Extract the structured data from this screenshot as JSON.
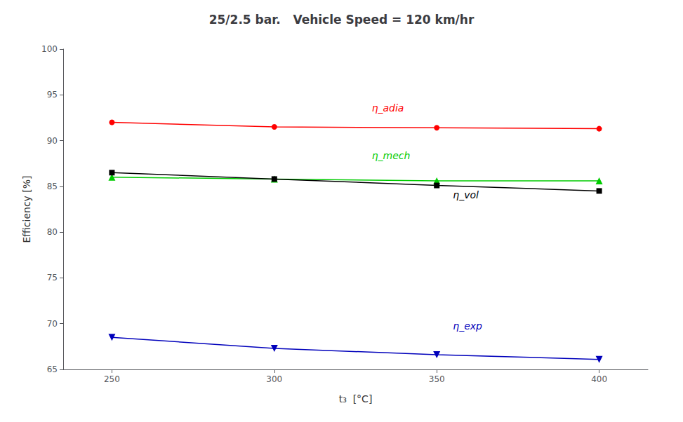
{
  "chart_data": {
    "type": "line",
    "title": "25/2.5 bar.   Vehicle Speed = 120 km/hr",
    "xlabel": "t₃  [°C]",
    "ylabel": "Efficiency [%]",
    "x": [
      250,
      300,
      350,
      400
    ],
    "series": [
      {
        "color": "#ff0000",
        "marker": "circle",
        "values": [
          92.0,
          91.5,
          91.4,
          91.3
        ]
      },
      {
        "color": "#00cc00",
        "marker": "triangle",
        "values": [
          86.0,
          85.8,
          85.6,
          85.6
        ]
      },
      {
        "color": "#000000",
        "marker": "square",
        "values": [
          86.5,
          85.8,
          85.1,
          84.5
        ]
      },
      {
        "color": "#0000bb",
        "marker": "triangle-down",
        "values": [
          68.5,
          67.3,
          66.6,
          66.1
        ]
      }
    ],
    "annotations": [
      {
        "text": "η_adia",
        "x": 330,
        "y": 93.0,
        "color": "#ff0000"
      },
      {
        "text": "η_mech",
        "x": 330,
        "y": 87.8,
        "color": "#00cc00"
      },
      {
        "text": "η_vol",
        "x": 355,
        "y": 83.5,
        "color": "#000000"
      },
      {
        "text": "η_exp",
        "x": 355,
        "y": 69.2,
        "color": "#0000bb"
      }
    ],
    "xlim": [
      235,
      415
    ],
    "ylim": [
      65,
      100
    ],
    "xticks": [
      250,
      300,
      350,
      400
    ],
    "yticks": [
      65,
      70,
      75,
      80,
      85,
      90,
      95,
      100
    ],
    "grid": false
  }
}
